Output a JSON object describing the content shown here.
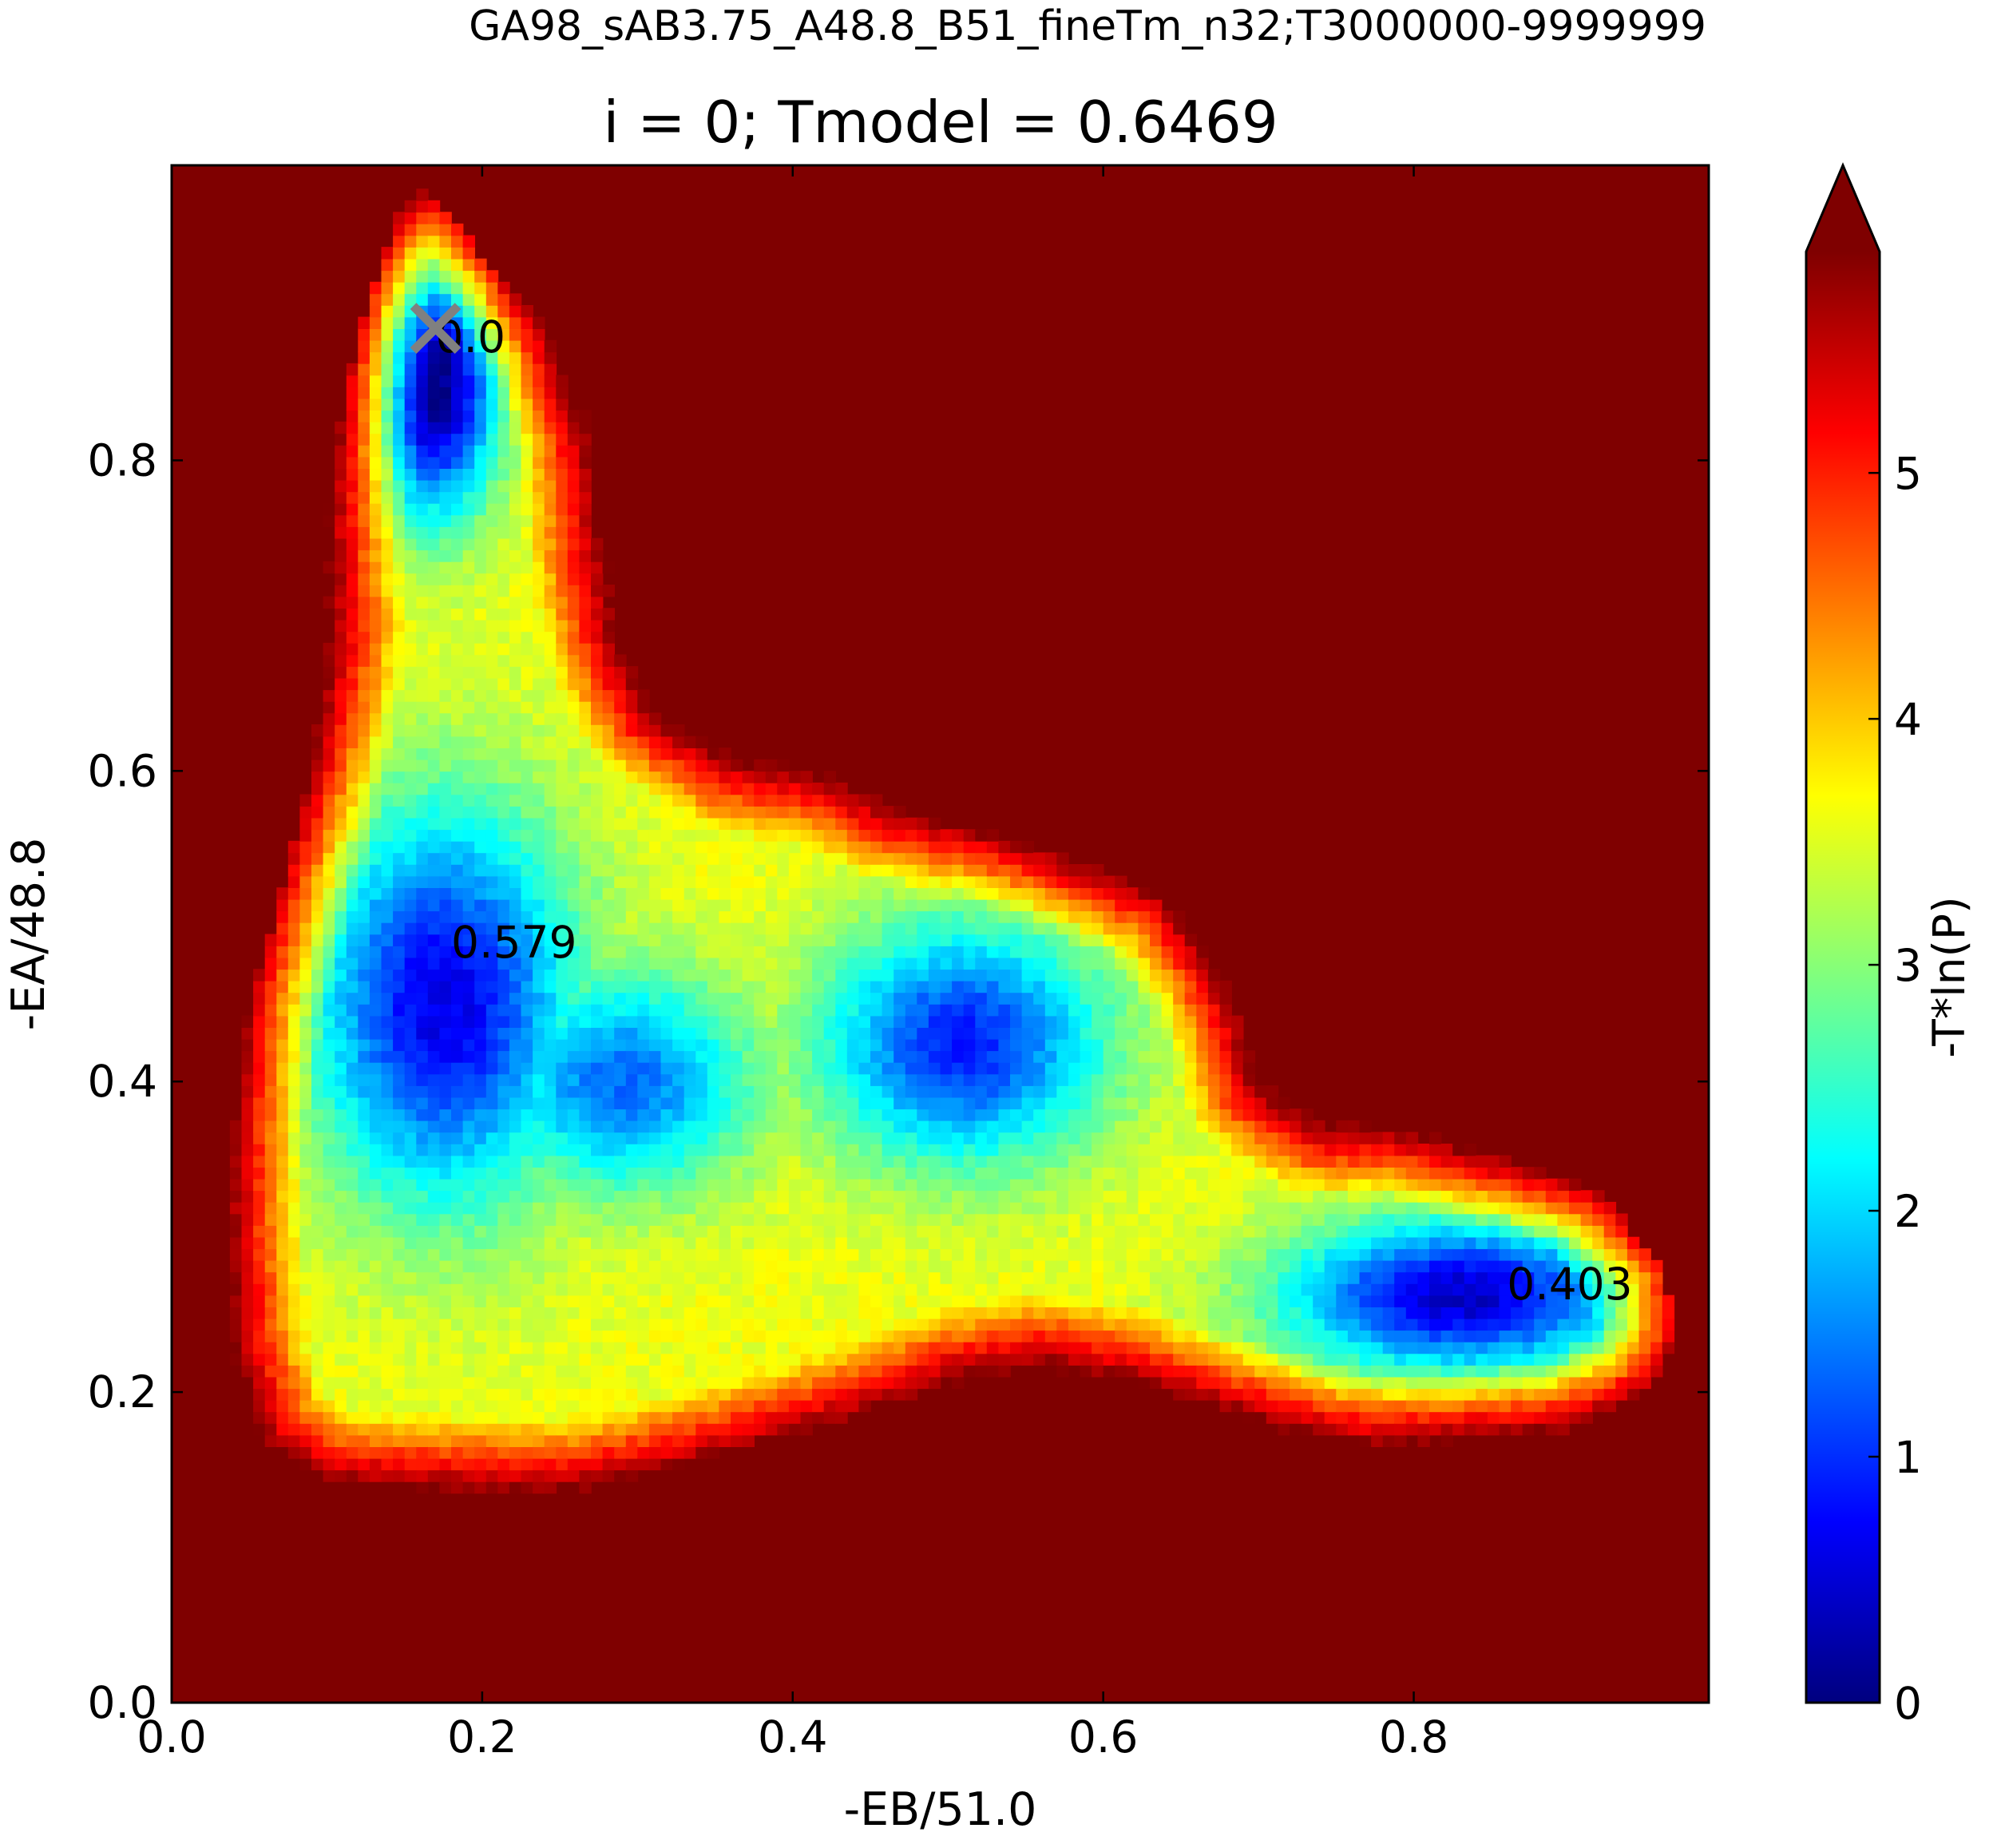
{
  "chart_data": {
    "type": "heatmap",
    "suptitle": "GA98_sAB3.75_A48.8_B51_fineTm_n32;T3000000-9999999",
    "title": "i = 0; Tmodel = 0.6469",
    "xlabel": "-EB/51.0",
    "ylabel": "-EA/48.8",
    "xlim": [
      0.0,
      0.99
    ],
    "ylim": [
      0.0,
      0.99
    ],
    "xticks": [
      0.0,
      0.2,
      0.4,
      0.6,
      0.8
    ],
    "yticks": [
      0.0,
      0.2,
      0.4,
      0.6,
      0.8
    ],
    "xtick_labels": [
      "0.0",
      "0.2",
      "0.4",
      "0.6",
      "0.8"
    ],
    "ytick_labels": [
      "0.0",
      "0.2",
      "0.4",
      "0.6",
      "0.8"
    ],
    "colorbar": {
      "label": "-T*ln(P)",
      "range": [
        0,
        5.9
      ],
      "ticks": [
        0,
        1,
        2,
        3,
        4,
        5
      ],
      "tick_labels": [
        "0",
        "1",
        "2",
        "3",
        "4",
        "5"
      ],
      "extend": "max",
      "colormap": [
        "#00007f",
        "#0000ff",
        "#007fff",
        "#00ffff",
        "#7fff7f",
        "#ffff00",
        "#ff7f00",
        "#ff0000",
        "#7f0000"
      ]
    },
    "background_color": "#7f0000",
    "basins": [
      {
        "x": 0.17,
        "y": 0.85,
        "sx": 0.028,
        "sy": 0.06,
        "depth": 0.0
      },
      {
        "x": 0.175,
        "y": 0.45,
        "sx": 0.06,
        "sy": 0.09,
        "depth": 0.579
      },
      {
        "x": 0.51,
        "y": 0.425,
        "sx": 0.065,
        "sy": 0.055,
        "depth": 0.9
      },
      {
        "x": 0.83,
        "y": 0.262,
        "sx": 0.08,
        "sy": 0.035,
        "depth": 0.403
      },
      {
        "x": 0.29,
        "y": 0.4,
        "sx": 0.06,
        "sy": 0.05,
        "depth": 1.35
      }
    ],
    "region_boundary": [
      [
        0.165,
        0.975
      ],
      [
        0.2,
        0.93
      ],
      [
        0.245,
        0.88
      ],
      [
        0.27,
        0.82
      ],
      [
        0.28,
        0.74
      ],
      [
        0.29,
        0.68
      ],
      [
        0.31,
        0.64
      ],
      [
        0.36,
        0.61
      ],
      [
        0.42,
        0.6
      ],
      [
        0.47,
        0.575
      ],
      [
        0.53,
        0.56
      ],
      [
        0.6,
        0.535
      ],
      [
        0.64,
        0.52
      ],
      [
        0.67,
        0.48
      ],
      [
        0.69,
        0.44
      ],
      [
        0.7,
        0.4
      ],
      [
        0.74,
        0.375
      ],
      [
        0.8,
        0.37
      ],
      [
        0.86,
        0.35
      ],
      [
        0.92,
        0.33
      ],
      [
        0.96,
        0.28
      ],
      [
        0.97,
        0.24
      ],
      [
        0.95,
        0.2
      ],
      [
        0.9,
        0.175
      ],
      [
        0.84,
        0.17
      ],
      [
        0.77,
        0.165
      ],
      [
        0.72,
        0.175
      ],
      [
        0.67,
        0.19
      ],
      [
        0.62,
        0.205
      ],
      [
        0.56,
        0.215
      ],
      [
        0.5,
        0.205
      ],
      [
        0.45,
        0.185
      ],
      [
        0.4,
        0.17
      ],
      [
        0.33,
        0.15
      ],
      [
        0.26,
        0.135
      ],
      [
        0.19,
        0.135
      ],
      [
        0.1,
        0.14
      ],
      [
        0.06,
        0.165
      ],
      [
        0.04,
        0.22
      ],
      [
        0.035,
        0.3
      ],
      [
        0.04,
        0.37
      ],
      [
        0.05,
        0.45
      ],
      [
        0.07,
        0.52
      ],
      [
        0.09,
        0.6
      ],
      [
        0.1,
        0.68
      ],
      [
        0.1,
        0.76
      ],
      [
        0.11,
        0.83
      ],
      [
        0.125,
        0.9
      ],
      [
        0.145,
        0.955
      ]
    ],
    "annotations": [
      {
        "text": "0.0",
        "x": 0.17,
        "y": 0.88
      },
      {
        "text": "0.579",
        "x": 0.18,
        "y": 0.49
      },
      {
        "text": "0.403",
        "x": 0.86,
        "y": 0.27
      }
    ],
    "marker": {
      "symbol": "x",
      "x": 0.17,
      "y": 0.885,
      "color": "#808080"
    }
  }
}
